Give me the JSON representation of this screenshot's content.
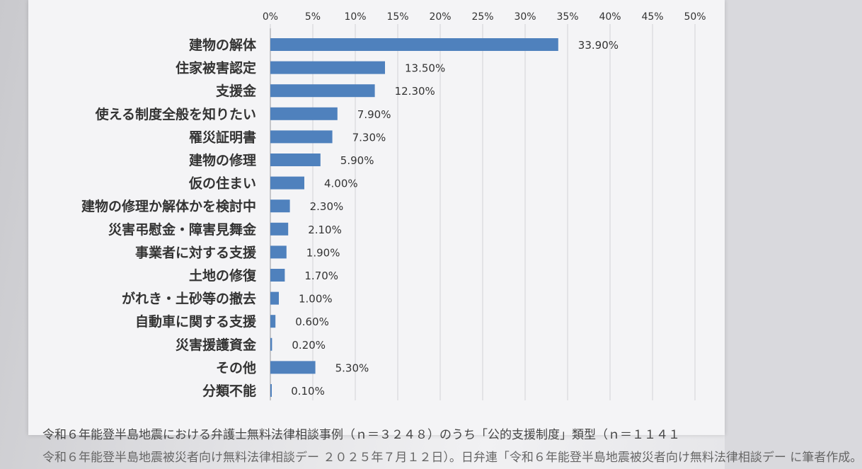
{
  "chart_data": {
    "type": "bar",
    "orientation": "horizontal",
    "x_ticks": [
      "0%",
      "5%",
      "10%",
      "15%",
      "20%",
      "25%",
      "30%",
      "35%",
      "40%",
      "45%",
      "50%"
    ],
    "xlim": [
      0,
      50
    ],
    "categories": [
      "建物の解体",
      "住家被害認定",
      "支援金",
      "使える制度全般を知りたい",
      "罹災証明書",
      "建物の修理",
      "仮の住まい",
      "建物の修理か解体かを検討中",
      "災害弔慰金・障害見舞金",
      "事業者に対する支援",
      "土地の修復",
      "がれき・土砂等の撤去",
      "自動車に関する支援",
      "災害援護資金",
      "その他",
      "分類不能"
    ],
    "values": [
      33.9,
      13.5,
      12.3,
      7.9,
      7.3,
      5.9,
      4.0,
      2.3,
      2.1,
      1.9,
      1.7,
      1.0,
      0.6,
      0.2,
      5.3,
      0.1
    ],
    "labels": [
      "33.90%",
      "13.50%",
      "12.30%",
      "7.90%",
      "7.30%",
      "5.90%",
      "4.00%",
      "2.30%",
      "2.10%",
      "1.90%",
      "1.70%",
      "1.00%",
      "0.60%",
      "0.20%",
      "5.30%",
      "0.10%"
    ],
    "grid": true,
    "bar_color": "#4f81bd"
  },
  "caption": {
    "line1": "令和６年能登半島地震における弁護士無料法律相談事例（ｎ＝３２４８）のうち「公的支援制度」類型（ｎ＝１１４１",
    "line2": "令和６年能登半島地震被災者向け無料法律相談デー ２０２５年７月１２日）。日弁連「令和６年能登半島地震被災者向け無料法律相談デー に筆者作成。"
  }
}
